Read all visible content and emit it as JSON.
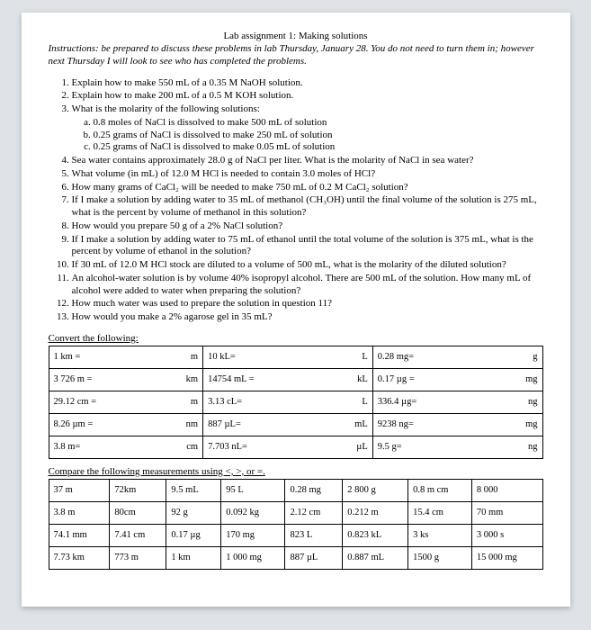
{
  "title": "Lab assignment 1: Making solutions",
  "instructions": "Instructions: be prepared to discuss these problems in lab Thursday, January 28. You do not need to turn them in; however next Thursday I will look to see who has completed the problems.",
  "questions": {
    "q1": "Explain how to make 550 mL of a 0.35 M NaOH solution.",
    "q2": "Explain how to make 200 mL of a 0.5 M KOH solution.",
    "q3": "What is the molarity of the following solutions:",
    "q3a": "0.8 moles of NaCl is dissolved to make 500 mL of solution",
    "q3b": "0.25 grams of NaCl is dissolved to make 250 mL of solution",
    "q3c": "0.25 grams of NaCl is dissolved to make 0.05 mL of solution",
    "q4": "Sea water contains approximately 28.0 g of NaCl per liter. What is the molarity of NaCl in sea water?",
    "q5": "What volume (in mL) of 12.0 M HCl is needed to contain 3.0 moles of HCl?",
    "q6": "How many grams of CaCl₂ will be needed to make 750 mL of 0.2 M CaCl₂ solution?",
    "q7": "If I make a solution by adding water to 35 mL of methanol (CH₃OH) until the final volume of the solution is 275 mL, what is the percent by volume of methanol in this solution?",
    "q8": "How would you prepare 50 g of a 2% NaCl solution?",
    "q9": "If I make a solution by adding water to 75 mL of ethanol until the total volume of the solution is 375 mL, what is the percent by volume of ethanol in the solution?",
    "q10": "If 30 mL of 12.0 M HCl stock are diluted to a volume of 500 mL, what is the molarity of the diluted solution?",
    "q11": "An alcohol-water solution is by volume 40% isopropyl alcohol. There are 500 mL of the solution. How many mL of alcohol were added to water when preparing the solution?",
    "q12": "How much water was used to prepare the solution in question 11?",
    "q13": "How would you make a 2% agarose gel in 35 mL?"
  },
  "convert_head": "Convert the following:",
  "convert": [
    {
      "a": "1 km =",
      "au": "m",
      "b": "10 kL=",
      "bu": "L",
      "c": "0.28 mg=",
      "cu": "g"
    },
    {
      "a": "3 726 m =",
      "au": "km",
      "b": "14754 mL =",
      "bu": "kL",
      "c": "0.17 µg =",
      "cu": "mg"
    },
    {
      "a": "29.12 cm =",
      "au": "m",
      "b": "3.13 cL=",
      "bu": "L",
      "c": "336.4 µg=",
      "cu": "ng"
    },
    {
      "a": "8.26 µm =",
      "au": "nm",
      "b": "887 µL=",
      "bu": "mL",
      "c": "9238 ng=",
      "cu": "mg"
    },
    {
      "a": "3.8 m=",
      "au": "cm",
      "b": "7.703 nL=",
      "bu": "µL",
      "c": "9.5 g=",
      "cu": "ng"
    }
  ],
  "compare_head": "Compare the following measurements using <, >, or =.",
  "compare": [
    [
      "37 m",
      "72km",
      "9.5 mL",
      "95 L",
      "0.28 mg",
      "2 800 g",
      "0.8 m cm",
      "8 000"
    ],
    [
      "3.8 m",
      "80cm",
      "92 g",
      "0.092 kg",
      "2.12 cm",
      "0.212 m",
      "15.4 cm",
      "70 mm"
    ],
    [
      "74.1 mm",
      "7.41 cm",
      "0.17 µg",
      "170 mg",
      "823 L",
      "0.823 kL",
      "3 ks",
      "3 000 s"
    ],
    [
      "7.73 km",
      "773 m",
      "1 km",
      "1 000 mg",
      "887 µL",
      "0.887 mL",
      "1500 g",
      "15 000 mg"
    ]
  ]
}
